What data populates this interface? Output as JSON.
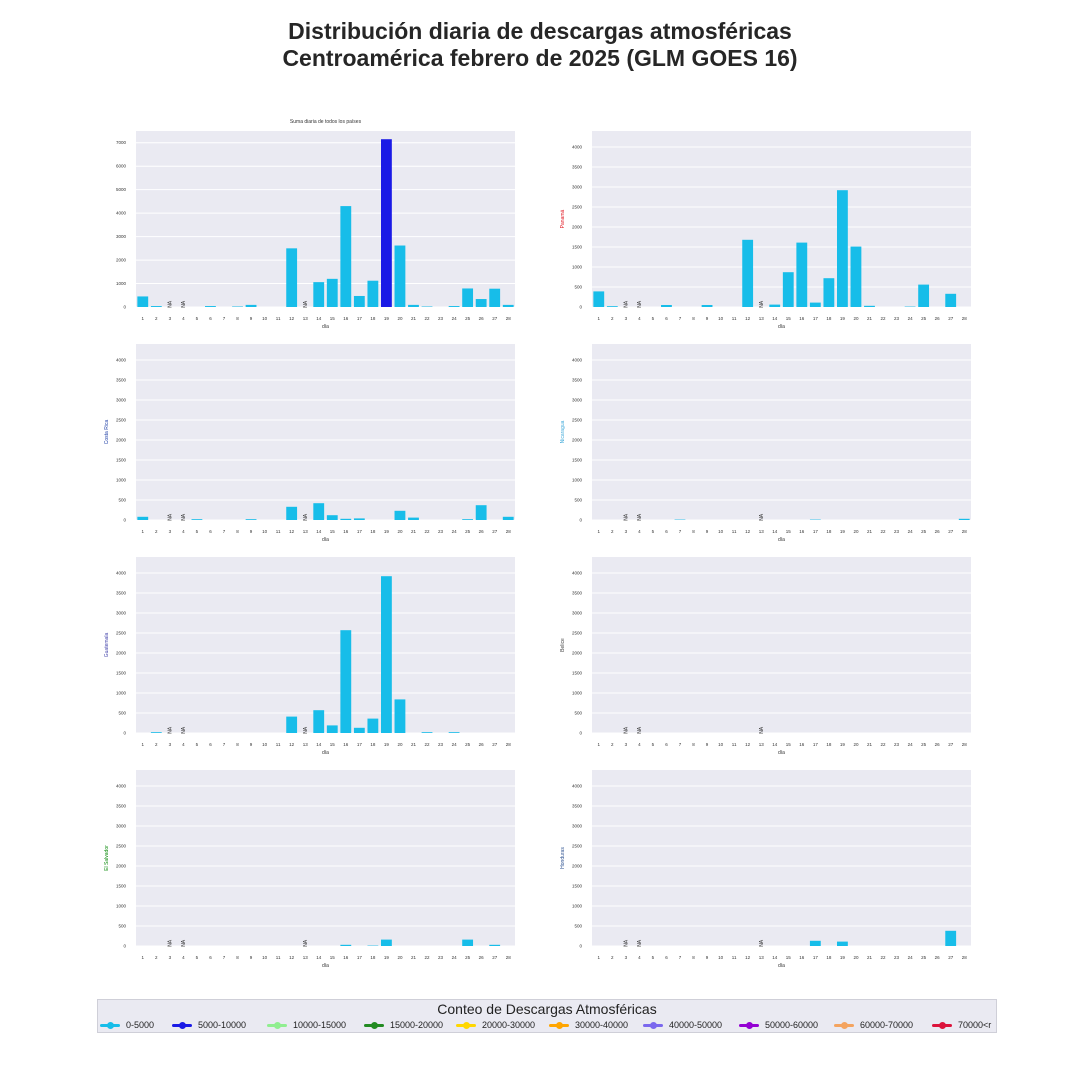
{
  "title_line1": "Distribución diaria de descargas atmosféricas",
  "title_line2": "Centroamérica febrero de 2025 (GLM GOES 16)",
  "chart_data": [
    {
      "type": "bar",
      "title": "Suma diaria de todos los países",
      "ylabel": "",
      "ylabel_color": "#222222",
      "xlabel": "día",
      "ylim": [
        0,
        7500
      ],
      "yticks": [
        0,
        1000,
        2000,
        3000,
        4000,
        5000,
        6000,
        7000
      ],
      "categories": [
        "1",
        "2",
        "3",
        "4",
        "5",
        "6",
        "7",
        "8",
        "9",
        "10",
        "11",
        "12",
        "13",
        "14",
        "15",
        "16",
        "17",
        "18",
        "19",
        "20",
        "21",
        "22",
        "23",
        "24",
        "25",
        "26",
        "27",
        "28"
      ],
      "values": [
        450,
        40,
        null,
        null,
        0,
        40,
        0,
        20,
        90,
        0,
        0,
        2500,
        null,
        1060,
        1200,
        4300,
        470,
        1120,
        7150,
        2620,
        90,
        20,
        0,
        40,
        790,
        340,
        780,
        90
      ],
      "bar_colors": [
        "#17bde9",
        "#17bde9",
        "#17bde9",
        "#17bde9",
        "#17bde9",
        "#17bde9",
        "#17bde9",
        "#17bde9",
        "#17bde9",
        "#17bde9",
        "#17bde9",
        "#17bde9",
        "#17bde9",
        "#17bde9",
        "#17bde9",
        "#17bde9",
        "#17bde9",
        "#17bde9",
        "#1a1ae6",
        "#17bde9",
        "#17bde9",
        "#17bde9",
        "#17bde9",
        "#17bde9",
        "#17bde9",
        "#17bde9",
        "#17bde9",
        "#17bde9"
      ]
    },
    {
      "type": "bar",
      "title": "",
      "ylabel": "Panamá",
      "ylabel_color": "#e0101b",
      "xlabel": "día",
      "ylim": [
        0,
        4400
      ],
      "yticks": [
        0,
        500,
        1000,
        1500,
        2000,
        2500,
        3000,
        3500,
        4000
      ],
      "categories": [
        "1",
        "2",
        "3",
        "4",
        "5",
        "6",
        "7",
        "8",
        "9",
        "10",
        "11",
        "12",
        "13",
        "14",
        "15",
        "16",
        "17",
        "18",
        "19",
        "20",
        "21",
        "22",
        "23",
        "24",
        "25",
        "26",
        "27",
        "28"
      ],
      "values": [
        390,
        20,
        null,
        null,
        0,
        50,
        0,
        0,
        50,
        0,
        0,
        1680,
        null,
        60,
        870,
        1610,
        110,
        720,
        2920,
        1510,
        30,
        0,
        0,
        10,
        560,
        0,
        330,
        0
      ],
      "bar_color": "#17bde9"
    },
    {
      "type": "bar",
      "title": "",
      "ylabel": "Costa Rica",
      "ylabel_color": "#1f3fa6",
      "xlabel": "día",
      "ylim": [
        0,
        4400
      ],
      "yticks": [
        0,
        500,
        1000,
        1500,
        2000,
        2500,
        3000,
        3500,
        4000
      ],
      "categories": [
        "1",
        "2",
        "3",
        "4",
        "5",
        "6",
        "7",
        "8",
        "9",
        "10",
        "11",
        "12",
        "13",
        "14",
        "15",
        "16",
        "17",
        "18",
        "19",
        "20",
        "21",
        "22",
        "23",
        "24",
        "25",
        "26",
        "27",
        "28"
      ],
      "values": [
        80,
        0,
        null,
        null,
        20,
        0,
        0,
        0,
        20,
        0,
        0,
        330,
        null,
        420,
        120,
        30,
        40,
        0,
        0,
        230,
        60,
        0,
        0,
        0,
        20,
        370,
        0,
        80
      ],
      "bar_color": "#17bde9"
    },
    {
      "type": "bar",
      "title": "",
      "ylabel": "Nicaragua",
      "ylabel_color": "#3fa9d9",
      "xlabel": "día",
      "ylim": [
        0,
        4400
      ],
      "yticks": [
        0,
        500,
        1000,
        1500,
        2000,
        2500,
        3000,
        3500,
        4000
      ],
      "categories": [
        "1",
        "2",
        "3",
        "4",
        "5",
        "6",
        "7",
        "8",
        "9",
        "10",
        "11",
        "12",
        "13",
        "14",
        "15",
        "16",
        "17",
        "18",
        "19",
        "20",
        "21",
        "22",
        "23",
        "24",
        "25",
        "26",
        "27",
        "28"
      ],
      "values": [
        0,
        0,
        null,
        null,
        0,
        0,
        10,
        0,
        0,
        0,
        0,
        0,
        null,
        0,
        0,
        0,
        10,
        0,
        0,
        0,
        0,
        0,
        0,
        0,
        0,
        0,
        0,
        30
      ],
      "bar_color": "#17bde9"
    },
    {
      "type": "bar",
      "title": "",
      "ylabel": "Guatemala",
      "ylabel_color": "#3c3ca8",
      "xlabel": "día",
      "ylim": [
        0,
        4400
      ],
      "yticks": [
        0,
        500,
        1000,
        1500,
        2000,
        2500,
        3000,
        3500,
        4000
      ],
      "categories": [
        "1",
        "2",
        "3",
        "4",
        "5",
        "6",
        "7",
        "8",
        "9",
        "10",
        "11",
        "12",
        "13",
        "14",
        "15",
        "16",
        "17",
        "18",
        "19",
        "20",
        "21",
        "22",
        "23",
        "24",
        "25",
        "26",
        "27",
        "28"
      ],
      "values": [
        0,
        20,
        null,
        null,
        0,
        0,
        0,
        0,
        0,
        0,
        0,
        410,
        null,
        570,
        190,
        2570,
        130,
        360,
        3920,
        840,
        0,
        20,
        0,
        20,
        0,
        0,
        0,
        0
      ],
      "bar_color": "#17bde9"
    },
    {
      "type": "bar",
      "title": "",
      "ylabel": "Belice",
      "ylabel_color": "#4a4a4a",
      "xlabel": "día",
      "ylim": [
        0,
        4400
      ],
      "yticks": [
        0,
        500,
        1000,
        1500,
        2000,
        2500,
        3000,
        3500,
        4000
      ],
      "categories": [
        "1",
        "2",
        "3",
        "4",
        "5",
        "6",
        "7",
        "8",
        "9",
        "10",
        "11",
        "12",
        "13",
        "14",
        "15",
        "16",
        "17",
        "18",
        "19",
        "20",
        "21",
        "22",
        "23",
        "24",
        "25",
        "26",
        "27",
        "28"
      ],
      "values": [
        0,
        0,
        null,
        null,
        0,
        0,
        0,
        0,
        0,
        0,
        0,
        0,
        null,
        0,
        0,
        0,
        0,
        0,
        0,
        0,
        0,
        0,
        0,
        0,
        0,
        0,
        0,
        0
      ],
      "bar_color": "#17bde9"
    },
    {
      "type": "bar",
      "title": "",
      "ylabel": "El Salvador",
      "ylabel_color": "#0a8a0a",
      "xlabel": "día",
      "ylim": [
        0,
        4400
      ],
      "yticks": [
        0,
        500,
        1000,
        1500,
        2000,
        2500,
        3000,
        3500,
        4000
      ],
      "categories": [
        "1",
        "2",
        "3",
        "4",
        "5",
        "6",
        "7",
        "8",
        "9",
        "10",
        "11",
        "12",
        "13",
        "14",
        "15",
        "16",
        "17",
        "18",
        "19",
        "20",
        "21",
        "22",
        "23",
        "24",
        "25",
        "26",
        "27",
        "28"
      ],
      "values": [
        0,
        0,
        null,
        null,
        0,
        0,
        0,
        0,
        0,
        0,
        0,
        0,
        null,
        0,
        0,
        30,
        0,
        10,
        160,
        0,
        0,
        0,
        0,
        0,
        160,
        0,
        30,
        0
      ],
      "bar_color": "#17bde9"
    },
    {
      "type": "bar",
      "title": "",
      "ylabel": "Honduras",
      "ylabel_color": "#2b4f8f",
      "xlabel": "día",
      "ylim": [
        0,
        4400
      ],
      "yticks": [
        0,
        500,
        1000,
        1500,
        2000,
        2500,
        3000,
        3500,
        4000
      ],
      "categories": [
        "1",
        "2",
        "3",
        "4",
        "5",
        "6",
        "7",
        "8",
        "9",
        "10",
        "11",
        "12",
        "13",
        "14",
        "15",
        "16",
        "17",
        "18",
        "19",
        "20",
        "21",
        "22",
        "23",
        "24",
        "25",
        "26",
        "27",
        "28"
      ],
      "values": [
        0,
        0,
        null,
        null,
        0,
        0,
        0,
        0,
        0,
        0,
        0,
        0,
        null,
        0,
        0,
        0,
        130,
        0,
        110,
        0,
        0,
        0,
        0,
        0,
        0,
        0,
        380,
        0
      ],
      "bar_color": "#17bde9"
    }
  ],
  "na_label": "NA",
  "legend": {
    "title": "Conteo de Descargas Atmosféricas",
    "items": [
      {
        "label": "0-5000",
        "color": "#17bde9"
      },
      {
        "label": "5000-10000",
        "color": "#1a1ae6"
      },
      {
        "label": "10000-15000",
        "color": "#90ee90"
      },
      {
        "label": "15000-20000",
        "color": "#228b22"
      },
      {
        "label": "20000-30000",
        "color": "#ffd700"
      },
      {
        "label": "30000-40000",
        "color": "#ffa500"
      },
      {
        "label": "40000-50000",
        "color": "#7b68ee"
      },
      {
        "label": "50000-60000",
        "color": "#9400d3"
      },
      {
        "label": "60000-70000",
        "color": "#f4a460"
      },
      {
        "label": "70000<r",
        "color": "#dc143c"
      }
    ]
  }
}
